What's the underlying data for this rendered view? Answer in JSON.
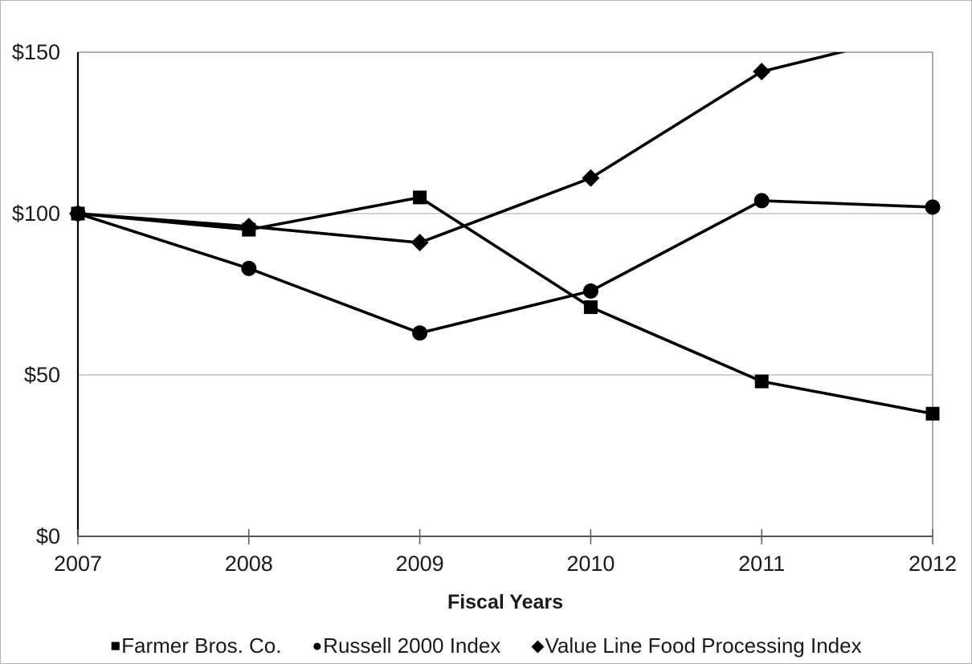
{
  "colors": {
    "series": "#000000",
    "gridline": "#ccd5d2",
    "plot_border": "#808080",
    "x_axis": "#595959",
    "y_axis": "#000000",
    "text": "#1a1a1a"
  },
  "chart_data": {
    "type": "line",
    "xlabel": "Fiscal Years",
    "ylabel": "",
    "x": [
      "2007",
      "2008",
      "2009",
      "2010",
      "2011",
      "2012"
    ],
    "ylim": [
      0,
      150
    ],
    "y_ticks": [
      {
        "value": 150,
        "label": "$150"
      },
      {
        "value": 100,
        "label": "$100"
      },
      {
        "value": 50,
        "label": "$50"
      },
      {
        "value": 0,
        "label": "$0"
      }
    ],
    "grid": "horizontal",
    "legend_position": "bottom",
    "series": [
      {
        "name": "Farmer Bros. Co.",
        "marker": "square",
        "values": [
          100,
          95,
          105,
          71,
          48,
          38
        ]
      },
      {
        "name": "Russell 2000 Index",
        "marker": "circle",
        "values": [
          100,
          83,
          63,
          76,
          104,
          102
        ]
      },
      {
        "name": "Value Line Food Processing Index",
        "marker": "diamond",
        "values": [
          100,
          96,
          91,
          111,
          144,
          157
        ]
      }
    ]
  }
}
